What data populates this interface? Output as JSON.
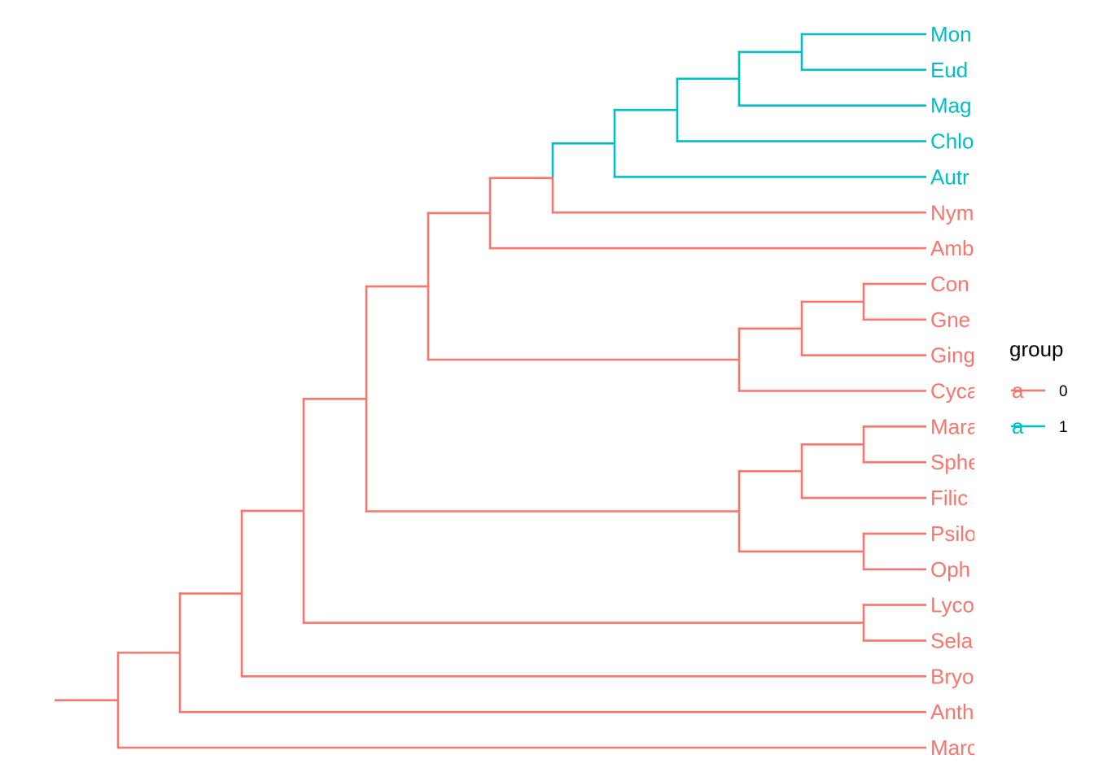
{
  "colors": {
    "group_0": "#F8766D",
    "group_1": "#00BFC4"
  },
  "tips": [
    {
      "label": "Mon",
      "group": "1"
    },
    {
      "label": "Eud",
      "group": "1"
    },
    {
      "label": "Mag",
      "group": "1"
    },
    {
      "label": "Chlo",
      "group": "1"
    },
    {
      "label": "Autr",
      "group": "1"
    },
    {
      "label": "Nym",
      "group": "0"
    },
    {
      "label": "Amb",
      "group": "0"
    },
    {
      "label": "Con",
      "group": "0"
    },
    {
      "label": "Gne",
      "group": "0"
    },
    {
      "label": "Ging",
      "group": "0"
    },
    {
      "label": "Cyca",
      "group": "0"
    },
    {
      "label": "Mara",
      "group": "0"
    },
    {
      "label": "Sphe",
      "group": "0"
    },
    {
      "label": "Filic",
      "group": "0"
    },
    {
      "label": "Psilo",
      "group": "0"
    },
    {
      "label": "Oph",
      "group": "0"
    },
    {
      "label": "Lyco",
      "group": "0"
    },
    {
      "label": "Sela",
      "group": "0"
    },
    {
      "label": "Bryo",
      "group": "0"
    },
    {
      "label": "Anth",
      "group": "0"
    },
    {
      "label": "Marc",
      "group": "0"
    }
  ],
  "legend": {
    "title": "group",
    "key_glyph": "a",
    "items": [
      {
        "label": "0",
        "group": "0"
      },
      {
        "label": "1",
        "group": "1"
      }
    ]
  }
}
